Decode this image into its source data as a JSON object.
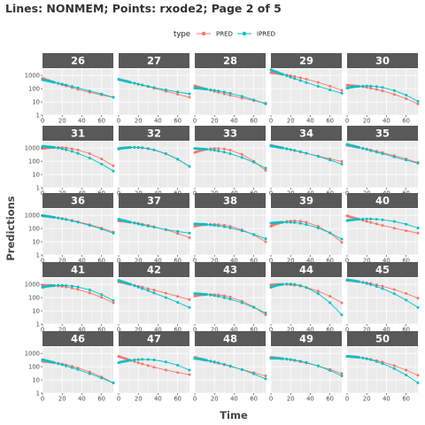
{
  "chart_data": {
    "type": "line",
    "title": "Lines: NONMEM; Points: rxode2; Page 2 of 5",
    "xlabel": "Time",
    "ylabel": "Predictions",
    "legend": {
      "title": "type",
      "position": "top",
      "entries": [
        "PRED",
        "IPRED"
      ]
    },
    "colors": {
      "PRED": "#f8766d",
      "IPRED": "#00bfc4"
    },
    "x_scale": "linear",
    "y_scale": "log10",
    "xlim": [
      0,
      72
    ],
    "ylim": [
      1,
      3000
    ],
    "x_ticks": [
      0,
      20,
      40,
      60
    ],
    "x_tick_labels": [
      "0",
      "20",
      "40",
      "60"
    ],
    "y_ticks": [
      1,
      10,
      100,
      1000
    ],
    "y_tick_labels": [
      "1",
      "10",
      "100",
      "1000"
    ],
    "grid": true,
    "facets": {
      "rows": 5,
      "cols": 5,
      "panels": [
        {
          "id": "26",
          "PRED": [
            600,
            300,
            22
          ],
          "IPRED": [
            470,
            300,
            22
          ]
        },
        {
          "id": "27",
          "PRED": [
            500,
            300,
            22
          ],
          "IPRED": [
            500,
            300,
            40
          ]
        },
        {
          "id": "28",
          "PRED": [
            160,
            90,
            8
          ],
          "IPRED": [
            110,
            90,
            7
          ]
        },
        {
          "id": "29",
          "PRED": [
            1600,
            1200,
            75
          ],
          "IPRED": [
            2600,
            1200,
            45
          ]
        },
        {
          "id": "30",
          "PRED": [
            180,
            150,
            7
          ],
          "IPRED": [
            110,
            150,
            11
          ]
        },
        {
          "id": "31",
          "PRED": [
            900,
            1100,
            45
          ],
          "IPRED": [
            1350,
            1100,
            18
          ]
        },
        {
          "id": "32",
          "PRED": [
            900,
            1100,
            40
          ],
          "IPRED": [
            850,
            1100,
            40
          ]
        },
        {
          "id": "33",
          "PRED": [
            450,
            800,
            20
          ],
          "IPRED": [
            900,
            800,
            30
          ]
        },
        {
          "id": "34",
          "PRED": [
            1600,
            1000,
            95
          ],
          "IPRED": [
            1400,
            1000,
            60
          ]
        },
        {
          "id": "35",
          "PRED": [
            1600,
            1100,
            80
          ],
          "IPRED": [
            1900,
            1100,
            70
          ]
        },
        {
          "id": "36",
          "PRED": [
            900,
            700,
            55
          ],
          "IPRED": [
            950,
            700,
            45
          ]
        },
        {
          "id": "37",
          "PRED": [
            380,
            300,
            20
          ],
          "IPRED": [
            500,
            300,
            45
          ]
        },
        {
          "id": "38",
          "PRED": [
            150,
            200,
            10
          ],
          "IPRED": [
            220,
            200,
            17
          ]
        },
        {
          "id": "39",
          "PRED": [
            150,
            300,
            9
          ],
          "IPRED": [
            250,
            300,
            16
          ]
        },
        {
          "id": "40",
          "PRED": [
            900,
            500,
            45
          ],
          "IPRED": [
            400,
            500,
            110
          ]
        },
        {
          "id": "41",
          "PRED": [
            850,
            800,
            40
          ],
          "IPRED": [
            600,
            800,
            60
          ]
        },
        {
          "id": "42",
          "PRED": [
            1600,
            1000,
            70
          ],
          "IPRED": [
            2000,
            1000,
            18
          ]
        },
        {
          "id": "43",
          "PRED": [
            130,
            170,
            5
          ],
          "IPRED": [
            200,
            170,
            7
          ]
        },
        {
          "id": "44",
          "PRED": [
            900,
            1000,
            40
          ],
          "IPRED": [
            600,
            1000,
            5
          ]
        },
        {
          "id": "45",
          "PRED": [
            2000,
            1600,
            90
          ],
          "IPRED": [
            2200,
            1600,
            18
          ]
        },
        {
          "id": "46",
          "PRED": [
            250,
            200,
            6
          ],
          "IPRED": [
            330,
            200,
            6
          ]
        },
        {
          "id": "47",
          "PRED": [
            600,
            300,
            25
          ],
          "IPRED": [
            200,
            300,
            55
          ]
        },
        {
          "id": "48",
          "PRED": [
            500,
            300,
            20
          ],
          "IPRED": [
            420,
            300,
            12
          ]
        },
        {
          "id": "49",
          "PRED": [
            500,
            400,
            30
          ],
          "IPRED": [
            430,
            400,
            20
          ]
        },
        {
          "id": "50",
          "PRED": [
            600,
            500,
            22
          ],
          "IPRED": [
            600,
            500,
            6
          ]
        }
      ]
    }
  }
}
